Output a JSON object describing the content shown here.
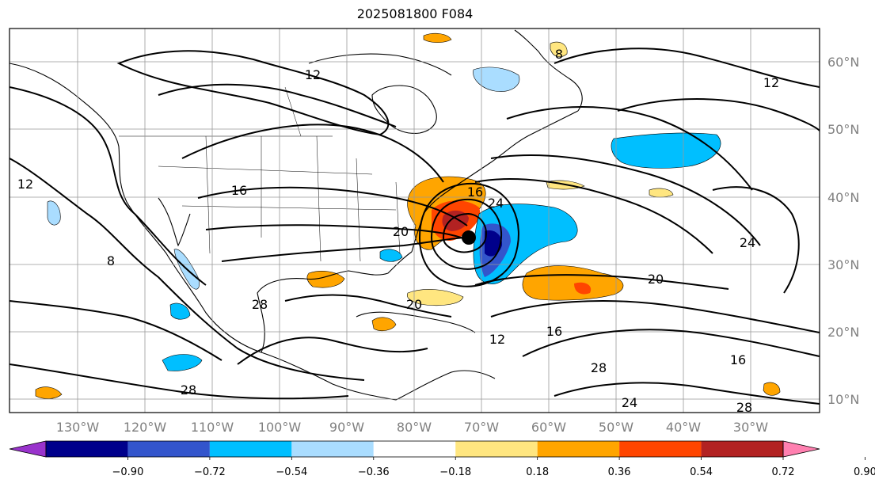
{
  "title": "2025081800 F084",
  "longitude_labels": [
    "130°W",
    "120°W",
    "110°W",
    "100°W",
    "90°W",
    "80°W",
    "70°W",
    "60°W",
    "50°W",
    "40°W",
    "30°W"
  ],
  "latitude_labels": [
    "60°N",
    "50°N",
    "40°N",
    "30°N",
    "20°N",
    "10°N"
  ],
  "contour_labels": [
    "8",
    "12",
    "16",
    "20",
    "24",
    "28"
  ],
  "colorbar": {
    "tick_labels": [
      "−0.90",
      "−0.72",
      "−0.54",
      "−0.36",
      "−0.18",
      "0.18",
      "0.36",
      "0.54",
      "0.72",
      "0.90"
    ],
    "colors": [
      "#9933cc",
      "#00008b",
      "#3355cc",
      "#00bfff",
      "#aaddff",
      "#ffffff",
      "#ffe680",
      "#ffa500",
      "#ff4500",
      "#b22222",
      "#ff80b0"
    ]
  },
  "map": {
    "lon_range": [
      -140,
      -25
    ],
    "lat_range": [
      8,
      65
    ]
  }
}
